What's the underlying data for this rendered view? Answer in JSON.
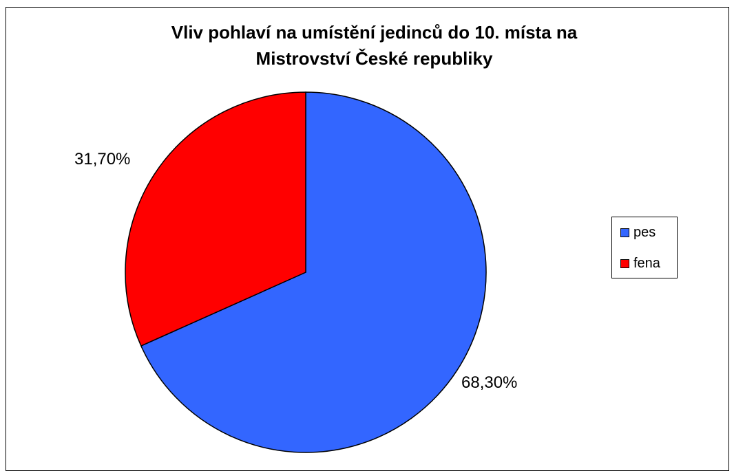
{
  "chart_data": {
    "type": "pie",
    "title": "Vliv pohlaví na umístění jedinců do 10. místa na\nMistrovství České republiky",
    "legend_position": "right",
    "slices": [
      {
        "label": "pes",
        "value": 68.3,
        "value_label": "68,30%",
        "color": "#3366FF"
      },
      {
        "label": "fena",
        "value": 31.7,
        "value_label": "31,70%",
        "color": "#FF0000"
      }
    ]
  }
}
